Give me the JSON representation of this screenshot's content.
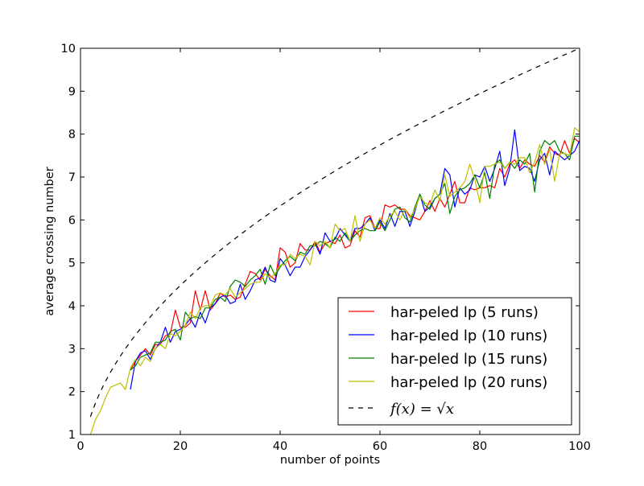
{
  "chart_data": {
    "type": "line",
    "title": "",
    "xlabel": "number of points",
    "ylabel": "average crossing number",
    "xlim": [
      0,
      100
    ],
    "ylim": [
      1,
      10
    ],
    "xticks": [
      0,
      20,
      40,
      60,
      80,
      100
    ],
    "yticks": [
      1,
      2,
      3,
      4,
      5,
      6,
      7,
      8,
      9,
      10
    ],
    "grid": false,
    "legend_position": "lower right",
    "series": [
      {
        "name": "har-peled lp (5 runs)",
        "color": "#ff0000",
        "style": "solid",
        "x": [
          10,
          11,
          12,
          13,
          14,
          15,
          16,
          17,
          18,
          19,
          20,
          21,
          22,
          23,
          24,
          25,
          26,
          27,
          28,
          29,
          30,
          31,
          32,
          33,
          34,
          35,
          36,
          37,
          38,
          39,
          40,
          41,
          42,
          43,
          44,
          45,
          46,
          47,
          48,
          49,
          50,
          51,
          52,
          53,
          54,
          55,
          56,
          57,
          58,
          59,
          60,
          61,
          62,
          63,
          64,
          65,
          66,
          67,
          68,
          69,
          70,
          71,
          72,
          73,
          74,
          75,
          76,
          77,
          78,
          79,
          80,
          81,
          82,
          83,
          84,
          85,
          86,
          87,
          88,
          89,
          90,
          91,
          92,
          93,
          94,
          95,
          96,
          97,
          98,
          99,
          100
        ],
        "y": [
          2.5,
          2.7,
          2.85,
          3.0,
          2.85,
          3.1,
          3.1,
          3.3,
          3.35,
          3.9,
          3.5,
          3.5,
          3.6,
          4.35,
          3.9,
          4.35,
          3.9,
          4.05,
          4.3,
          4.2,
          4.25,
          4.15,
          4.2,
          4.5,
          4.8,
          4.75,
          4.6,
          4.85,
          4.7,
          4.6,
          5.35,
          5.25,
          4.9,
          5.0,
          5.45,
          5.3,
          5.3,
          5.5,
          5.25,
          5.45,
          5.5,
          5.45,
          5.65,
          5.35,
          5.4,
          5.75,
          5.6,
          6.05,
          6.1,
          5.8,
          5.8,
          6.35,
          6.3,
          6.35,
          6.25,
          6.25,
          6.1,
          6.05,
          6.0,
          6.2,
          6.45,
          6.2,
          6.5,
          6.3,
          6.6,
          6.9,
          6.4,
          6.4,
          6.75,
          6.7,
          6.75,
          6.75,
          6.8,
          6.75,
          7.2,
          7.0,
          7.3,
          7.4,
          7.2,
          7.4,
          7.3,
          7.25,
          7.5,
          7.35,
          7.7,
          7.55,
          7.5,
          7.85,
          7.55,
          7.9,
          7.8
        ]
      },
      {
        "name": "har-peled lp (10 runs)",
        "color": "#0000ff",
        "style": "solid",
        "x": [
          10,
          11,
          12,
          13,
          14,
          15,
          16,
          17,
          18,
          19,
          20,
          21,
          22,
          23,
          24,
          25,
          26,
          27,
          28,
          29,
          30,
          31,
          32,
          33,
          34,
          35,
          36,
          37,
          38,
          39,
          40,
          41,
          42,
          43,
          44,
          45,
          46,
          47,
          48,
          49,
          50,
          51,
          52,
          53,
          54,
          55,
          56,
          57,
          58,
          59,
          60,
          61,
          62,
          63,
          64,
          65,
          66,
          67,
          68,
          69,
          70,
          71,
          72,
          73,
          74,
          75,
          76,
          77,
          78,
          79,
          80,
          81,
          82,
          83,
          84,
          85,
          86,
          87,
          88,
          89,
          90,
          91,
          92,
          93,
          94,
          95,
          96,
          97,
          98,
          99,
          100
        ],
        "y": [
          2.05,
          2.7,
          2.9,
          2.95,
          2.75,
          3.0,
          3.15,
          3.5,
          3.15,
          3.4,
          3.45,
          3.55,
          3.7,
          3.5,
          3.85,
          3.6,
          3.95,
          4.05,
          4.2,
          4.25,
          4.05,
          4.1,
          4.5,
          4.15,
          4.35,
          4.6,
          4.65,
          4.9,
          4.6,
          4.55,
          5.1,
          4.95,
          4.7,
          4.9,
          4.9,
          5.15,
          5.3,
          5.45,
          5.2,
          5.7,
          5.5,
          5.55,
          5.8,
          5.65,
          5.5,
          5.8,
          5.8,
          5.9,
          6.05,
          5.75,
          6.0,
          5.8,
          6.15,
          5.85,
          6.2,
          6.2,
          5.85,
          6.2,
          6.6,
          6.2,
          6.3,
          6.5,
          6.6,
          7.2,
          7.05,
          6.3,
          6.75,
          6.6,
          6.7,
          7.05,
          7.0,
          7.25,
          6.9,
          7.2,
          7.6,
          6.8,
          7.2,
          8.1,
          7.15,
          7.25,
          7.2,
          6.9,
          7.4,
          7.55,
          7.05,
          7.6,
          7.5,
          7.4,
          7.5,
          7.6,
          7.85
        ]
      },
      {
        "name": "har-peled lp (15 runs)",
        "color": "#008000",
        "style": "solid",
        "x": [
          10,
          11,
          12,
          13,
          14,
          15,
          16,
          17,
          18,
          19,
          20,
          21,
          22,
          23,
          24,
          25,
          26,
          27,
          28,
          29,
          30,
          31,
          32,
          33,
          34,
          35,
          36,
          37,
          38,
          39,
          40,
          41,
          42,
          43,
          44,
          45,
          46,
          47,
          48,
          49,
          50,
          51,
          52,
          53,
          54,
          55,
          56,
          57,
          58,
          59,
          60,
          61,
          62,
          63,
          64,
          65,
          66,
          67,
          68,
          69,
          70,
          71,
          72,
          73,
          74,
          75,
          76,
          77,
          78,
          79,
          80,
          81,
          82,
          83,
          84,
          85,
          86,
          87,
          88,
          89,
          90,
          91,
          92,
          93,
          94,
          95,
          96,
          97,
          98,
          99,
          100
        ],
        "y": [
          2.5,
          2.6,
          2.8,
          2.85,
          2.9,
          3.15,
          3.15,
          3.2,
          3.4,
          3.45,
          3.2,
          3.85,
          3.7,
          3.75,
          3.7,
          3.95,
          3.95,
          4.15,
          4.2,
          4.1,
          4.45,
          4.6,
          4.55,
          4.45,
          4.6,
          4.7,
          4.85,
          4.5,
          4.95,
          4.7,
          4.9,
          5.05,
          5.15,
          5.05,
          5.25,
          5.2,
          5.4,
          5.4,
          5.5,
          5.45,
          5.35,
          5.6,
          5.5,
          5.7,
          5.5,
          5.65,
          5.75,
          5.8,
          5.75,
          5.75,
          5.95,
          5.75,
          6.0,
          6.25,
          6.3,
          6.05,
          5.95,
          6.3,
          6.6,
          6.35,
          6.25,
          6.5,
          6.6,
          6.85,
          6.15,
          6.55,
          6.7,
          6.75,
          6.85,
          7.05,
          6.75,
          7.1,
          6.5,
          7.3,
          7.4,
          7.2,
          7.35,
          7.2,
          7.4,
          7.3,
          7.55,
          6.65,
          7.6,
          7.85,
          7.75,
          7.85,
          7.6,
          7.55,
          7.4,
          7.95,
          7.95
        ]
      },
      {
        "name": "har-peled lp (20 runs)",
        "color": "#bfbf00",
        "style": "solid",
        "x": [
          2,
          3,
          4,
          5,
          6,
          7,
          8,
          9,
          10,
          11,
          12,
          13,
          14,
          15,
          16,
          17,
          18,
          19,
          20,
          21,
          22,
          23,
          24,
          25,
          26,
          27,
          28,
          29,
          30,
          31,
          32,
          33,
          34,
          35,
          36,
          37,
          38,
          39,
          40,
          41,
          42,
          43,
          44,
          45,
          46,
          47,
          48,
          49,
          50,
          51,
          52,
          53,
          54,
          55,
          56,
          57,
          58,
          59,
          60,
          61,
          62,
          63,
          64,
          65,
          66,
          67,
          68,
          69,
          70,
          71,
          72,
          73,
          74,
          75,
          76,
          77,
          78,
          79,
          80,
          81,
          82,
          83,
          84,
          85,
          86,
          87,
          88,
          89,
          90,
          91,
          92,
          93,
          94,
          95,
          96,
          97,
          98,
          99,
          100
        ],
        "y": [
          1.0,
          1.35,
          1.55,
          1.85,
          2.1,
          2.15,
          2.2,
          2.05,
          2.55,
          2.75,
          2.6,
          2.8,
          2.7,
          3.0,
          3.1,
          3.0,
          3.35,
          3.3,
          3.4,
          3.55,
          3.85,
          3.7,
          3.95,
          4.0,
          4.0,
          4.25,
          4.3,
          4.25,
          4.4,
          4.2,
          4.3,
          4.4,
          4.5,
          4.55,
          4.55,
          4.75,
          4.65,
          4.75,
          4.95,
          4.95,
          5.2,
          5.1,
          5.2,
          5.15,
          4.95,
          5.5,
          5.4,
          5.5,
          5.35,
          5.9,
          5.75,
          5.8,
          5.5,
          6.1,
          5.5,
          5.9,
          6.0,
          5.8,
          6.05,
          5.9,
          6.1,
          6.2,
          6.0,
          6.25,
          6.05,
          6.25,
          6.55,
          6.4,
          6.35,
          6.7,
          6.45,
          7.05,
          6.55,
          6.65,
          6.75,
          6.9,
          7.3,
          6.95,
          6.4,
          7.25,
          7.25,
          7.3,
          7.35,
          7.2,
          7.35,
          7.3,
          7.45,
          7.45,
          7.1,
          7.35,
          7.75,
          7.3,
          7.65,
          6.9,
          7.55,
          7.55,
          7.5,
          8.15,
          8.05
        ]
      },
      {
        "name": "f(x) = √x",
        "color": "#000000",
        "style": "dashed",
        "function": "sqrt",
        "x_range": [
          2,
          100
        ]
      }
    ]
  }
}
